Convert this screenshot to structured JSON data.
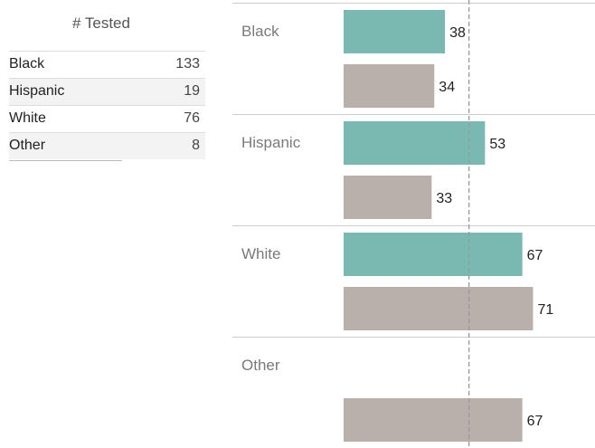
{
  "table": {
    "header": "# Tested",
    "rows": [
      {
        "label": "Black",
        "value": "133"
      },
      {
        "label": "Hispanic",
        "value": "19"
      },
      {
        "label": "White",
        "value": "76"
      },
      {
        "label": "Other",
        "value": "8"
      }
    ]
  },
  "chart_data": {
    "type": "bar",
    "orientation": "horizontal",
    "categories": [
      "Black",
      "Hispanic",
      "White",
      "Other"
    ],
    "series": [
      {
        "values": [
          38,
          53,
          67,
          null
        ],
        "color": "#7ab8b2"
      },
      {
        "values": [
          34,
          33,
          71,
          67
        ],
        "color": "#bab0ab"
      }
    ],
    "reference_line": {
      "value": 47,
      "style": "dashed",
      "color": "#999999"
    },
    "xlim": [
      0,
      72
    ],
    "title": "",
    "xlabel": "",
    "ylabel": ""
  }
}
